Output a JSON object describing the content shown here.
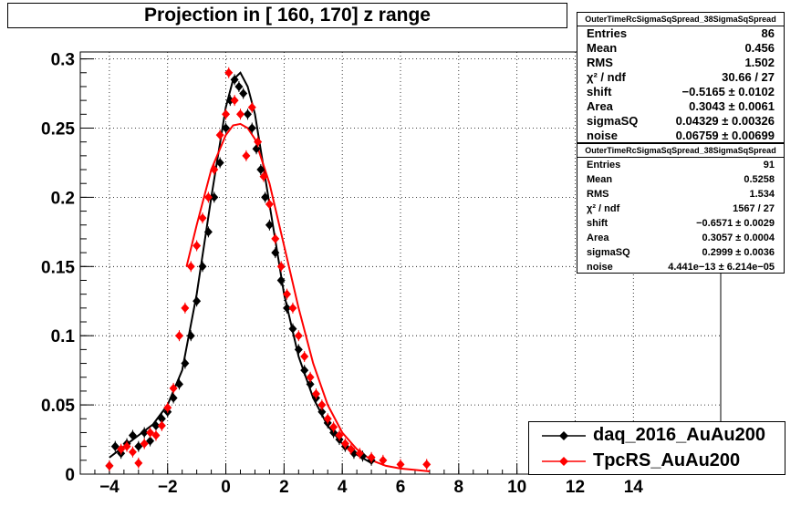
{
  "title": "Projection in [ 160, 170] z range",
  "stats_boxes": [
    {
      "header": "OuterTimeRcSigmaSqSpread_38SigmaSqSpread",
      "rows": [
        {
          "label": "Entries",
          "value": "86"
        },
        {
          "label": "Mean",
          "value": "0.456"
        },
        {
          "label": "RMS",
          "value": "1.502"
        },
        {
          "label": "χ² / ndf",
          "value": "30.66 / 27"
        },
        {
          "label": "shift",
          "value": "−0.5165 ± 0.0102"
        },
        {
          "label": "Area",
          "value": "0.3043 ± 0.0061"
        },
        {
          "label": "sigmaSQ",
          "value": "0.04329 ± 0.00326"
        },
        {
          "label": "noise",
          "value": "0.06759 ± 0.00699"
        }
      ]
    },
    {
      "header": "OuterTimeRcSigmaSqSpread_38SigmaSqSpread",
      "rows": [
        {
          "label": "Entries",
          "value": "91"
        },
        {
          "label": "Mean",
          "value": "0.5258"
        },
        {
          "label": "RMS",
          "value": "1.534"
        },
        {
          "label": "χ² / ndf",
          "value": "1567 / 27"
        },
        {
          "label": "shift",
          "value": "−0.6571 ± 0.0029"
        },
        {
          "label": "Area",
          "value": "0.3057 ± 0.0004"
        },
        {
          "label": "sigmaSQ",
          "value": "0.2999 ± 0.0036"
        },
        {
          "label": "noise",
          "value": "4.441e−13 ± 6.214e−05"
        }
      ]
    }
  ],
  "legend": [
    {
      "label": "daq_2016_AuAu200",
      "color": "#000000"
    },
    {
      "label": "TpcRS_AuAu200",
      "color": "#ff0000"
    }
  ],
  "chart_data": {
    "type": "scatter",
    "title": "Projection in [ 160, 170] z range",
    "xlim": [
      -5,
      17
    ],
    "ylim": [
      0,
      0.305
    ],
    "grid": true,
    "x_ticks": [
      -4,
      -2,
      0,
      2,
      4,
      6,
      8,
      10,
      12,
      14
    ],
    "x_tick_labels": [
      "−4",
      "−2",
      "0",
      "2",
      "4",
      "6",
      "8",
      "10",
      "12",
      "14"
    ],
    "y_ticks": [
      0,
      0.05,
      0.1,
      0.15,
      0.2,
      0.25,
      0.3
    ],
    "y_tick_labels": [
      "0",
      "0.05",
      "0.1",
      "0.15",
      "0.2",
      "0.25",
      "0.3"
    ],
    "legend_position": "bottom-right",
    "series": [
      {
        "name": "daq_2016_AuAu200",
        "color": "#000000",
        "marker": "diamond",
        "points": [
          [
            -4.0,
            0.006
          ],
          [
            -3.8,
            0.02
          ],
          [
            -3.6,
            0.015
          ],
          [
            -3.4,
            0.022
          ],
          [
            -3.2,
            0.028
          ],
          [
            -3.0,
            0.02
          ],
          [
            -2.8,
            0.03
          ],
          [
            -2.6,
            0.024
          ],
          [
            -2.4,
            0.035
          ],
          [
            -2.2,
            0.04
          ],
          [
            -2.0,
            0.045
          ],
          [
            -1.8,
            0.055
          ],
          [
            -1.6,
            0.065
          ],
          [
            -1.4,
            0.08
          ],
          [
            -1.2,
            0.1
          ],
          [
            -1.0,
            0.125
          ],
          [
            -0.8,
            0.15
          ],
          [
            -0.6,
            0.175
          ],
          [
            -0.4,
            0.2
          ],
          [
            -0.2,
            0.225
          ],
          [
            0.0,
            0.25
          ],
          [
            0.15,
            0.27
          ],
          [
            0.3,
            0.285
          ],
          [
            0.45,
            0.28
          ],
          [
            0.6,
            0.275
          ],
          [
            0.75,
            0.26
          ],
          [
            0.9,
            0.25
          ],
          [
            1.05,
            0.235
          ],
          [
            1.2,
            0.22
          ],
          [
            1.35,
            0.2
          ],
          [
            1.5,
            0.18
          ],
          [
            1.7,
            0.16
          ],
          [
            1.9,
            0.14
          ],
          [
            2.1,
            0.12
          ],
          [
            2.3,
            0.105
          ],
          [
            2.5,
            0.09
          ],
          [
            2.7,
            0.075
          ],
          [
            2.9,
            0.065
          ],
          [
            3.1,
            0.055
          ],
          [
            3.3,
            0.045
          ],
          [
            3.5,
            0.037
          ],
          [
            3.7,
            0.03
          ],
          [
            3.9,
            0.025
          ],
          [
            4.1,
            0.02
          ],
          [
            4.4,
            0.015
          ],
          [
            4.7,
            0.013
          ],
          [
            5.0,
            0.01
          ]
        ],
        "fit_curve": {
          "x": [
            -4.0,
            -3.5,
            -3.0,
            -2.5,
            -2.0,
            -1.5,
            -1.0,
            -0.5,
            0.0,
            0.25,
            0.5,
            0.75,
            1.0,
            1.5,
            2.0,
            2.5,
            3.0,
            3.5,
            4.0,
            4.5,
            5.0
          ],
          "y": [
            0.012,
            0.02,
            0.028,
            0.036,
            0.05,
            0.075,
            0.13,
            0.2,
            0.265,
            0.285,
            0.29,
            0.28,
            0.26,
            0.195,
            0.13,
            0.085,
            0.055,
            0.035,
            0.022,
            0.014,
            0.008
          ]
        }
      },
      {
        "name": "TpcRS_AuAu200",
        "color": "#ff0000",
        "marker": "diamond",
        "points": [
          [
            -4.0,
            0.006
          ],
          [
            -3.6,
            0.018
          ],
          [
            -3.4,
            0.02
          ],
          [
            -3.2,
            0.016
          ],
          [
            -3.0,
            0.008
          ],
          [
            -2.8,
            0.022
          ],
          [
            -2.6,
            0.03
          ],
          [
            -2.4,
            0.028
          ],
          [
            -2.2,
            0.035
          ],
          [
            -2.0,
            0.048
          ],
          [
            -1.8,
            0.062
          ],
          [
            -1.6,
            0.1
          ],
          [
            -1.4,
            0.12
          ],
          [
            -1.2,
            0.15
          ],
          [
            -1.0,
            0.165
          ],
          [
            -0.8,
            0.185
          ],
          [
            -0.6,
            0.2
          ],
          [
            -0.4,
            0.22
          ],
          [
            -0.2,
            0.245
          ],
          [
            0.0,
            0.26
          ],
          [
            0.1,
            0.29
          ],
          [
            0.3,
            0.27
          ],
          [
            0.5,
            0.26
          ],
          [
            0.7,
            0.23
          ],
          [
            0.9,
            0.265
          ],
          [
            1.1,
            0.24
          ],
          [
            1.3,
            0.215
          ],
          [
            1.5,
            0.195
          ],
          [
            1.7,
            0.17
          ],
          [
            1.9,
            0.15
          ],
          [
            2.1,
            0.13
          ],
          [
            2.3,
            0.12
          ],
          [
            2.5,
            0.1
          ],
          [
            2.7,
            0.085
          ],
          [
            2.9,
            0.07
          ],
          [
            3.1,
            0.058
          ],
          [
            3.3,
            0.05
          ],
          [
            3.5,
            0.04
          ],
          [
            3.7,
            0.034
          ],
          [
            3.9,
            0.028
          ],
          [
            4.1,
            0.022
          ],
          [
            4.3,
            0.018
          ],
          [
            4.6,
            0.015
          ],
          [
            5.0,
            0.012
          ],
          [
            5.4,
            0.01
          ],
          [
            6.0,
            0.007
          ],
          [
            6.9,
            0.007
          ]
        ],
        "fit_curve": {
          "x": [
            -1.35,
            -1.0,
            -0.5,
            0.0,
            0.25,
            0.5,
            0.75,
            1.0,
            1.5,
            2.0,
            2.5,
            3.0,
            3.5,
            4.0,
            4.5,
            5.0,
            5.5,
            6.0,
            6.5,
            7.0
          ],
          "y": [
            0.15,
            0.18,
            0.22,
            0.245,
            0.252,
            0.253,
            0.25,
            0.242,
            0.21,
            0.165,
            0.12,
            0.08,
            0.05,
            0.03,
            0.018,
            0.01,
            0.006,
            0.004,
            0.003,
            0.002
          ]
        }
      }
    ]
  }
}
